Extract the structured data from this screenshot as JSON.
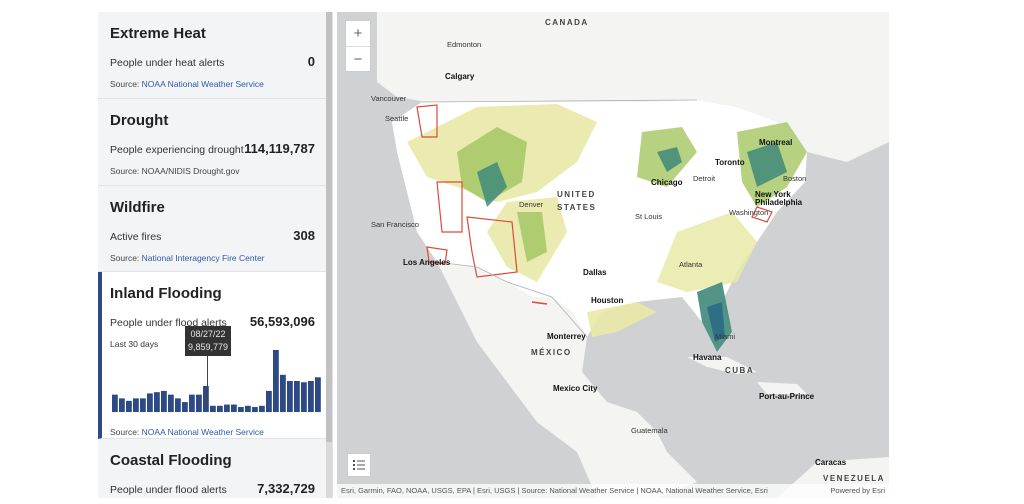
{
  "sidebar": {
    "cards": [
      {
        "title": "Extreme Heat",
        "metric_label": "People under heat alerts",
        "metric_value": "0",
        "source_prefix": "Source: ",
        "source_link": "NOAA National Weather Service"
      },
      {
        "title": "Drought",
        "metric_label": "People experiencing drought",
        "metric_value": "114,119,787",
        "source_prefix": "Source: NOAA/NIDIS Drought.gov",
        "source_link": ""
      },
      {
        "title": "Wildfire",
        "metric_label": "Active fires",
        "metric_value": "308",
        "source_prefix": "Source: ",
        "source_link": "National Interagency Fire Center"
      },
      {
        "title": "Inland Flooding",
        "metric_label": "People under flood alerts",
        "metric_value": "56,593,096",
        "period_label": "Last 30 days",
        "source_prefix": "Source: ",
        "source_link": "NOAA National Weather Service"
      },
      {
        "title": "Coastal Flooding",
        "metric_label": "People under flood alerts",
        "metric_value": "7,332,729"
      }
    ],
    "tooltip": {
      "date": "08/27/22",
      "value": "9,859,779"
    }
  },
  "chart_data": {
    "type": "bar",
    "title": "",
    "values": [
      14,
      11,
      9,
      11,
      11,
      15,
      16,
      17,
      14,
      11,
      8,
      14,
      14,
      21,
      5,
      5,
      6,
      6,
      4,
      5,
      4,
      5,
      17,
      50,
      30,
      25,
      25,
      24,
      25,
      28
    ],
    "highlight_index": 13,
    "color": "#2d4a86"
  },
  "map": {
    "zoom_in": "+",
    "zoom_out": "−",
    "labels": {
      "canada": "CANADA",
      "edmonton": "Edmonton",
      "calgary": "Calgary",
      "vancouver": "Vancouver",
      "seattle": "Seattle",
      "united": "UNITED",
      "states": "STATES",
      "denver": "Denver",
      "san_francisco": "San Francisco",
      "los_angeles": "Los Angeles",
      "chicago": "Chicago",
      "detroit": "Detroit",
      "toronto": "Toronto",
      "montreal": "Montreal",
      "boston": "Boston",
      "new_york": "New York",
      "philadelphia": "Philadelphia",
      "washington": "Washington",
      "st_louis": "St Louis",
      "atlanta": "Atlanta",
      "dallas": "Dallas",
      "houston": "Houston",
      "monterrey": "Monterrey",
      "mexico": "MÉXICO",
      "mexico_city": "Mexico City",
      "havana": "Havana",
      "cuba": "CUBA",
      "miami": "Miami",
      "port_au_prince": "Port-au-Prince",
      "guatemala": "Guatemala",
      "caracas": "Caracas",
      "venezuela": "VENEZUELA"
    },
    "attribution": "Esri, Garmin, FAO, NOAA, USGS, EPA | Esri, USGS | Source: National Weather Service | NOAA, National Weather Service, Esri",
    "powered_by": "Powered by Esri",
    "colors": {
      "drought_light": "#e9e9a8",
      "drought_mid": "#a9c96a",
      "drought_dark": "#3f8a7a",
      "drought_deep": "#2a6a86",
      "fire_outline": "#d94b3a",
      "land": "#f4f4f2",
      "us_land": "#ffffff",
      "water": "#cfd1d3"
    }
  }
}
